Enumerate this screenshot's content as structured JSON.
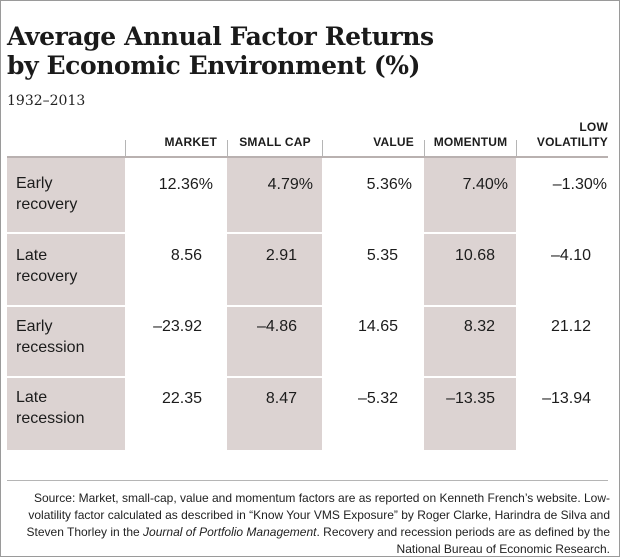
{
  "chart_data": {
    "type": "table",
    "title": "Average Annual Factor Returns by Economic Environment (%)",
    "title_lines": [
      "Average Annual Factor Returns",
      "by Economic Environment (%)"
    ],
    "subtitle": "1932–2013",
    "columns": [
      "MARKET",
      "SMALL CAP",
      "VALUE",
      "MOMENTUM",
      "LOW VOLATILITY"
    ],
    "column_lines": [
      [
        "MARKET"
      ],
      [
        "SMALL CAP"
      ],
      [
        "VALUE"
      ],
      [
        "MOMENTUM"
      ],
      [
        "LOW",
        "VOLATILITY"
      ]
    ],
    "rows": [
      {
        "label": "Early recovery",
        "label_lines": [
          "Early",
          "recovery"
        ],
        "cells": [
          "12.36%",
          "4.79%",
          "5.36%",
          "7.40%",
          "–1.30%"
        ]
      },
      {
        "label": "Late recovery",
        "label_lines": [
          "Late",
          "recovery"
        ],
        "cells": [
          "8.56",
          "2.91",
          "5.35",
          "10.68",
          "–4.10"
        ]
      },
      {
        "label": "Early recession",
        "label_lines": [
          "Early",
          "recession"
        ],
        "cells": [
          "–23.92",
          "–4.86",
          "14.65",
          "8.32",
          "21.12"
        ]
      },
      {
        "label": "Late recession",
        "label_lines": [
          "Late",
          "recession"
        ],
        "cells": [
          "22.35",
          "8.47",
          "–5.32",
          "–13.35",
          "–13.94"
        ]
      }
    ],
    "values": [
      [
        12.36,
        4.79,
        5.36,
        7.4,
        -1.3
      ],
      [
        8.56,
        2.91,
        5.35,
        10.68,
        -4.1
      ],
      [
        -23.92,
        -4.86,
        14.65,
        8.32,
        21.12
      ],
      [
        22.35,
        8.47,
        -5.32,
        -13.35,
        -13.94
      ]
    ],
    "shaded_color": "#dcd3d2"
  },
  "source": {
    "prefix": "Source: Market, small-cap, value and momentum factors are as reported on Kenneth French’s website. Low-volatility factor calculated as described in “Know Your VMS Exposure” by Roger Clarke, Harindra de Silva and Steven Thorley in the ",
    "journal": "Journal of Portfolio Management",
    "suffix": ". Recovery and recession periods are as defined by the National Bureau of Economic Research."
  }
}
